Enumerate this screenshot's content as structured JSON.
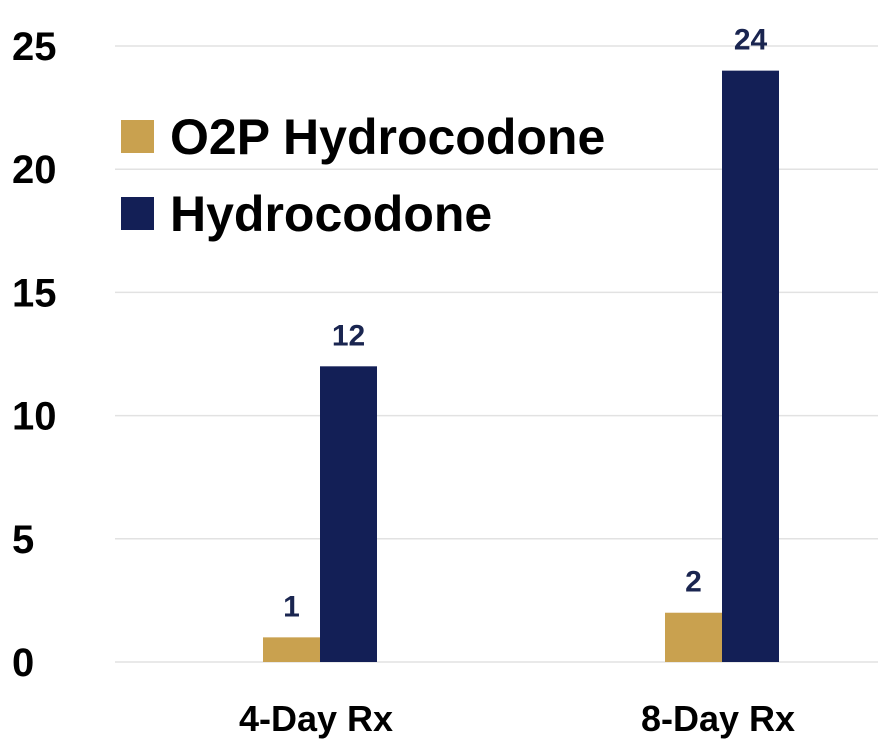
{
  "chart_data": {
    "type": "bar",
    "title": "",
    "xlabel": "",
    "ylabel": "",
    "categories": [
      "4-Day Rx",
      "8-Day Rx"
    ],
    "series": [
      {
        "name": "O2P Hydrocodone",
        "values": [
          1,
          2
        ],
        "color": "#c9a14f"
      },
      {
        "name": "Hydrocodone",
        "values": [
          12,
          24
        ],
        "color": "#131f56"
      }
    ],
    "ylim": [
      0,
      25
    ],
    "yticks": [
      0,
      5,
      10,
      15,
      20,
      25
    ],
    "grid": true,
    "legend_position": "top-left",
    "data_labels": true,
    "value_label_color": "#1a2550"
  }
}
